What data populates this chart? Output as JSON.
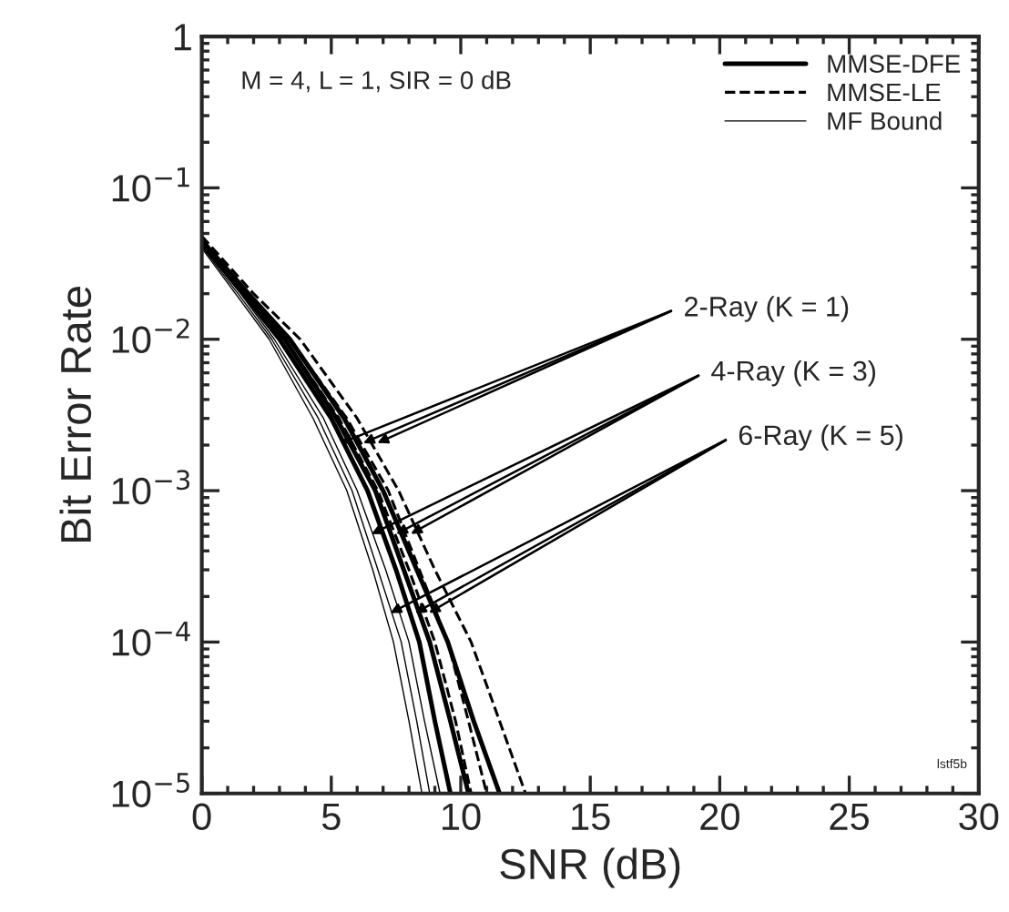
{
  "chart_data": {
    "type": "line",
    "xlabel": "SNR (dB)",
    "ylabel": "Bit Error Rate",
    "log": "y",
    "grid": false,
    "legend": "top right",
    "marker": "none",
    "xlim": [
      0,
      30
    ],
    "xticks": [
      0,
      5,
      10,
      15,
      20,
      25,
      30
    ],
    "ylim": [
      1e-05,
      1
    ],
    "yticks": [
      {
        "value": 1,
        "label": "1"
      },
      {
        "value": 0.1,
        "label": "10$^{−1}$"
      },
      {
        "value": 0.01,
        "label": "10$^{−2}$"
      },
      {
        "value": 0.001,
        "label": "10$^{−3}$"
      },
      {
        "value": 0.0001,
        "label": "10$^{−4}$"
      },
      {
        "value": 1e-05,
        "label": "10$^{−5}$"
      }
    ],
    "series": [
      {
        "name": "MMSE-DFE",
        "color": "#000000",
        "line_style": "solid",
        "x": [
          0,
          1.8,
          3.4,
          5.5,
          7.0,
          8.3,
          9.5,
          10.5,
          11.5
        ],
        "values": [
          0.045,
          0.02,
          0.01,
          0.003,
          0.001,
          0.0003,
          0.0001,
          3e-05,
          1e-05
        ]
      },
      {
        "name": "MMSE-LE",
        "color": "#000000",
        "line_style": "dashed",
        "x": [
          0,
          2.0,
          3.8,
          6.0,
          7.6,
          9.0,
          10.4,
          11.5,
          12.5
        ],
        "values": [
          0.048,
          0.02,
          0.01,
          0.003,
          0.001,
          0.0003,
          0.0001,
          3e-05,
          1e-05
        ]
      },
      {
        "name": "MF Bound",
        "color": "#000000",
        "line_style": "solid",
        "x": [
          0,
          1.5,
          2.8,
          4.7,
          6.0,
          7.1,
          8.0,
          8.6,
          9.2
        ],
        "values": [
          0.042,
          0.02,
          0.01,
          0.003,
          0.001,
          0.0003,
          0.0001,
          3e-05,
          1e-05
        ]
      },
      {
        "color": "#000000",
        "line_style": "solid",
        "x": [
          0,
          1.7,
          3.2,
          5.2,
          6.7,
          7.8,
          8.8,
          9.6,
          10.3
        ],
        "values": [
          0.044,
          0.02,
          0.01,
          0.003,
          0.001,
          0.0003,
          0.0001,
          3e-05,
          1e-05
        ]
      },
      {
        "color": "#000000",
        "line_style": "dashed",
        "x": [
          0,
          1.8,
          3.4,
          5.6,
          7.2,
          8.4,
          9.5,
          10.3,
          11.0
        ],
        "values": [
          0.046,
          0.02,
          0.01,
          0.003,
          0.001,
          0.0003,
          0.0001,
          3e-05,
          1e-05
        ]
      },
      {
        "color": "#000000",
        "line_style": "solid",
        "x": [
          0,
          1.4,
          2.7,
          4.5,
          5.8,
          6.8,
          7.7,
          8.3,
          8.8
        ],
        "values": [
          0.041,
          0.02,
          0.01,
          0.003,
          0.001,
          0.0003,
          0.0001,
          3e-05,
          1e-05
        ]
      },
      {
        "color": "#000000",
        "line_style": "solid",
        "x": [
          0,
          1.6,
          3.0,
          5.0,
          6.4,
          7.5,
          8.4,
          9.0,
          9.6
        ],
        "values": [
          0.043,
          0.02,
          0.01,
          0.003,
          0.001,
          0.0003,
          0.0001,
          3e-05,
          1e-05
        ]
      },
      {
        "color": "#000000",
        "line_style": "dashed",
        "x": [
          0,
          1.7,
          3.2,
          5.3,
          6.8,
          8.0,
          9.0,
          9.8,
          10.4
        ],
        "values": [
          0.045,
          0.02,
          0.01,
          0.003,
          0.001,
          0.0003,
          0.0001,
          3e-05,
          1e-05
        ]
      },
      {
        "color": "#000000",
        "line_style": "solid",
        "x": [
          0,
          1.3,
          2.6,
          4.3,
          5.6,
          6.6,
          7.4,
          8.0,
          8.5
        ],
        "values": [
          0.04,
          0.02,
          0.01,
          0.003,
          0.001,
          0.0003,
          0.0001,
          3e-05,
          1e-05
        ]
      }
    ],
    "annotations": [
      "M = 4, L = 1, SIR = 0 dB",
      {
        "text": "2-Ray (K = 1)",
        "x": 6.6,
        "y": 0.002
      },
      {
        "text": "4-Ray (K = 3)",
        "x": 7.9,
        "y": 0.0005
      },
      {
        "text": "6-Ray (K = 5)",
        "x": 8.6,
        "y": 0.00015
      },
      "lstf5b"
    ]
  }
}
